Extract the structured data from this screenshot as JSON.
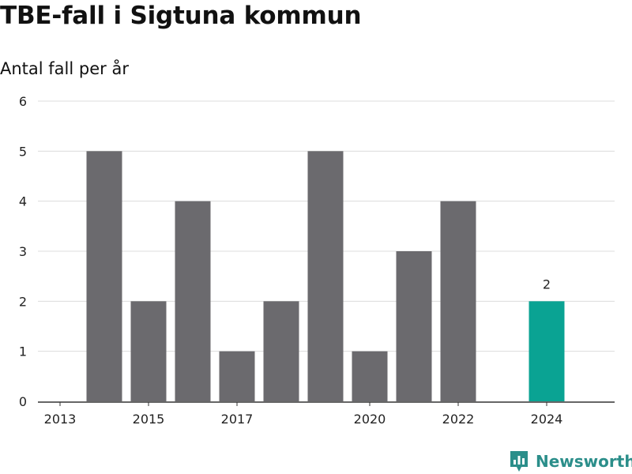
{
  "title": "TBE-fall i Sigtuna kommun",
  "subtitle": "Antal fall per år",
  "brand": {
    "name": "Newsworthy",
    "icon": "newsworthy-bar-chart-logo-icon"
  },
  "colors": {
    "bar": "#6b6a6e",
    "highlight": "#0aa393",
    "grid": "#dcdcdc",
    "axis": "#333333",
    "brand": "#2b8e8a"
  },
  "chart_data": {
    "type": "bar",
    "title": "TBE-fall i Sigtuna kommun",
    "subtitle": "Antal fall per år",
    "xlabel": "",
    "ylabel": "",
    "categories": [
      "2013",
      "2014",
      "2015",
      "2016",
      "2017",
      "2018",
      "2019",
      "2020",
      "2021",
      "2022",
      "2023",
      "2024"
    ],
    "values": [
      0,
      5,
      2,
      4,
      1,
      2,
      5,
      1,
      3,
      4,
      0,
      2
    ],
    "x_tick_labels": [
      "2013",
      "2015",
      "2017",
      "2020",
      "2022",
      "2024"
    ],
    "y_ticks": [
      0,
      1,
      2,
      3,
      4,
      5,
      6
    ],
    "ylim": [
      0,
      6
    ],
    "highlight_category": "2024",
    "data_labels": [
      {
        "category": "2024",
        "text": "2"
      }
    ],
    "grid": true,
    "legend": "none"
  }
}
